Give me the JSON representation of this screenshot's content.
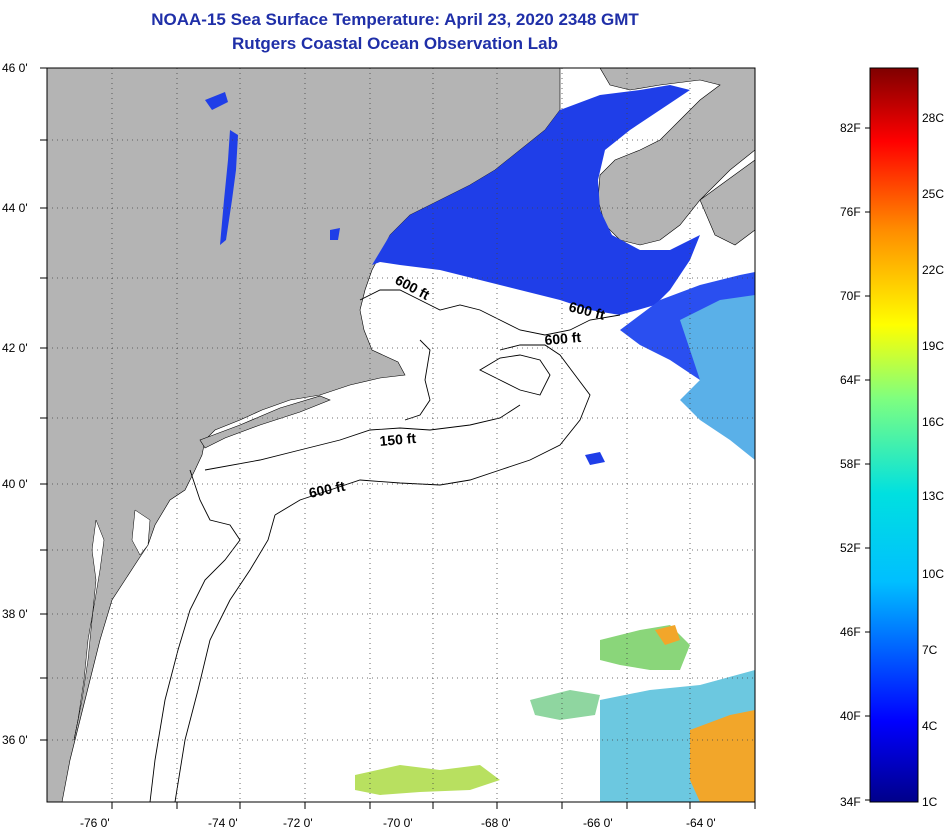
{
  "title": {
    "line1": "NOAA-15 Sea Surface Temperature:  April 23, 2020 2348 GMT",
    "line2": "Rutgers Coastal Ocean Observation Lab"
  },
  "map": {
    "lat_labels": [
      "46 0'",
      "44 0'",
      "42 0'",
      "40 0'",
      "38 0'",
      "36 0'"
    ],
    "lon_labels": [
      "-76 0'",
      "-74 0'",
      "-72 0'",
      "-70 0'",
      "-68 0'",
      "-66 0'",
      "-64 0'"
    ],
    "isobath_labels": {
      "gulf_maine": "600 ft",
      "north_east": "600 ft",
      "georges": "600 ft",
      "shelf": "600 ft",
      "shallow": "150 ft"
    },
    "colors": {
      "land": "#b4b4b4",
      "ocean_no_data": "#ffffff",
      "cold_water": "#1f3ee8",
      "warm_water": "#f2a62a"
    }
  },
  "colorbar": {
    "fahrenheit": [
      "82F",
      "76F",
      "70F",
      "64F",
      "58F",
      "52F",
      "46F",
      "40F",
      "34F"
    ],
    "celsius": [
      "28C",
      "25C",
      "22C",
      "19C",
      "16C",
      "13C",
      "10C",
      "7C",
      "4C",
      "1C"
    ]
  }
}
